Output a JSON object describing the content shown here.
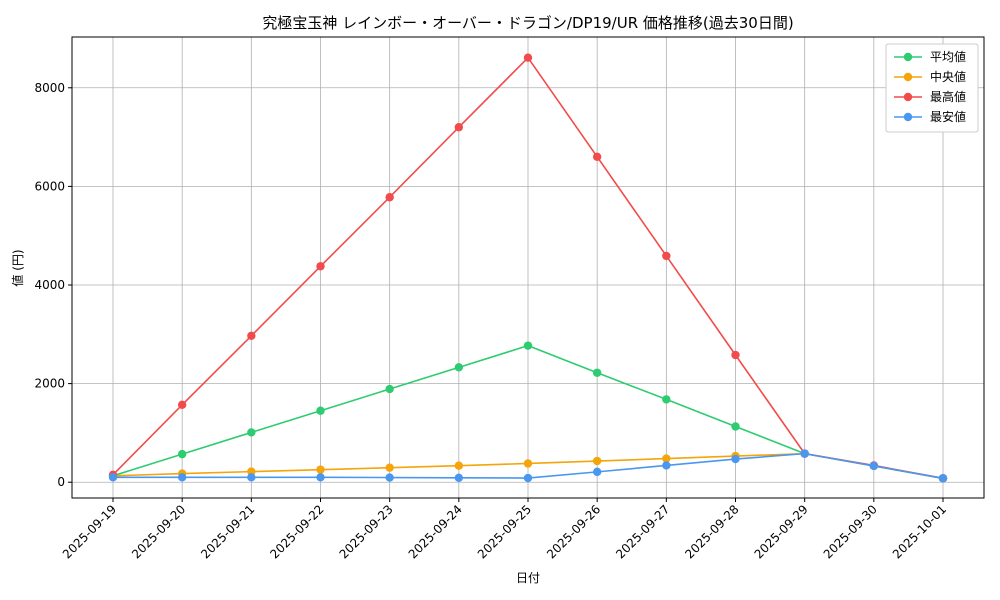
{
  "chart_data": {
    "type": "line",
    "title": "究極宝玉神 レインボー・オーバー・ドラゴン/DP19/UR 価格推移(過去30日間)",
    "xlabel": "日付",
    "ylabel": "値 (円)",
    "ylim": [
      -320,
      9030
    ],
    "yticks": [
      0,
      2000,
      4000,
      6000,
      8000
    ],
    "grid": true,
    "legend_position": "top-right",
    "categories": [
      "2025-09-19",
      "2025-09-20",
      "2025-09-21",
      "2025-09-22",
      "2025-09-23",
      "2025-09-24",
      "2025-09-25",
      "2025-09-26",
      "2025-09-27",
      "2025-09-28",
      "2025-09-29",
      "2025-09-30",
      "2025-10-01"
    ],
    "series": [
      {
        "name": "平均値",
        "color": "#2ecc71",
        "values": [
          130,
          570,
          1010,
          1450,
          1890,
          2330,
          2770,
          2220,
          1680,
          1130,
          580,
          330,
          80
        ]
      },
      {
        "name": "中央値",
        "color": "#f5a40a",
        "values": [
          130,
          175,
          215,
          255,
          295,
          335,
          380,
          430,
          480,
          530,
          580,
          330,
          80
        ]
      },
      {
        "name": "最高値",
        "color": "#f24b4b",
        "values": [
          150,
          1570,
          2970,
          4380,
          5780,
          7200,
          8610,
          6600,
          4590,
          2580,
          580,
          340,
          80
        ]
      },
      {
        "name": "最安値",
        "color": "#4a97f0",
        "values": [
          100,
          100,
          100,
          100,
          95,
          90,
          85,
          210,
          340,
          470,
          580,
          330,
          80
        ]
      }
    ]
  }
}
